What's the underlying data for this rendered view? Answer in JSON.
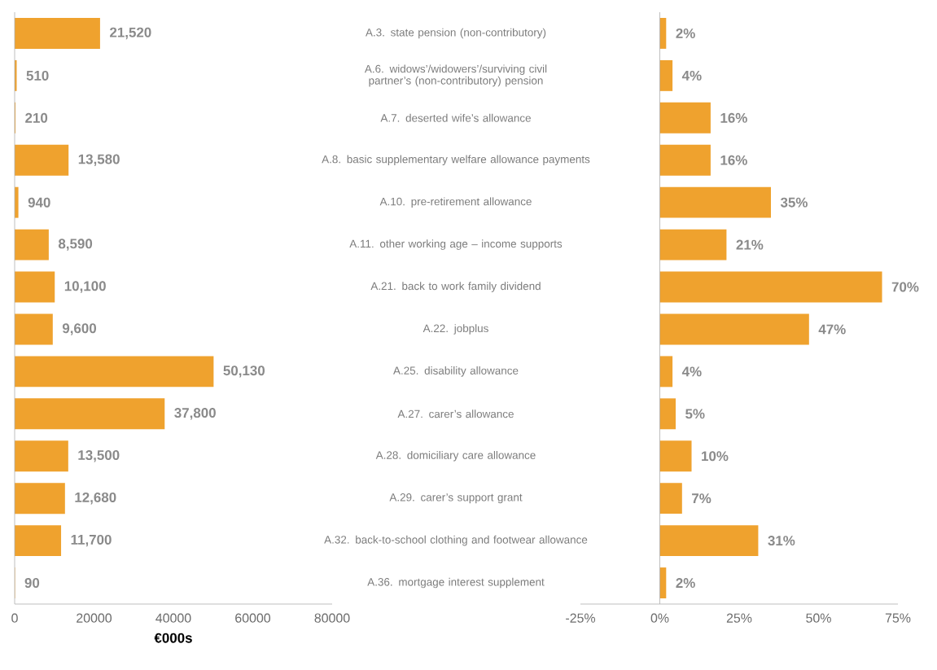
{
  "chart_data": [
    {
      "type": "bar",
      "orientation": "horizontal",
      "color": "#efa22e",
      "xlabel": "€000s",
      "xlim": [
        0,
        80000
      ],
      "xticks": [
        0,
        20000,
        40000,
        60000,
        80000
      ],
      "categories": [
        "A.3. state pension (non-contributory)",
        "A.6. widows’/widowers’/surviving civil partner’s (non-contributory) pension",
        "A.7. deserted wife’s allowance",
        "A.8. basic supplementary welfare allowance payments",
        "A.10. pre-retirement allowance",
        "A.11. other working age – income supports",
        "A.21. back to work family dividend",
        "A.22. jobplus",
        "A.25. disability allowance",
        "A.27. carer’s allowance",
        "A.28. domiciliary care allowance",
        "A.29. carer’s support grant",
        "A.32. back-to-school clothing and footwear allowance",
        "A.36. mortgage interest supplement"
      ],
      "values": [
        21520,
        510,
        210,
        13580,
        940,
        8590,
        10100,
        9600,
        50130,
        37800,
        13500,
        12680,
        11700,
        90
      ],
      "value_labels": [
        "21,520",
        "510",
        "210",
        "13,580",
        "940",
        "8,590",
        "10,100",
        "9,600",
        "50,130",
        "37,800",
        "13,500",
        "12,680",
        "11,700",
        "90"
      ]
    },
    {
      "type": "bar",
      "orientation": "horizontal",
      "color": "#efa22e",
      "xlim": [
        -25,
        75
      ],
      "xticks": [
        {
          "value": -25,
          "label": "-25%"
        },
        {
          "value": 0,
          "label": "0%"
        },
        {
          "value": 25,
          "label": "25%"
        },
        {
          "value": 50,
          "label": "50%"
        },
        {
          "value": 75,
          "label": "75%"
        }
      ],
      "categories": [
        null,
        null,
        null,
        null,
        null,
        null,
        null,
        null,
        null,
        null,
        null,
        null,
        null,
        null
      ],
      "values": [
        2,
        4,
        16,
        16,
        35,
        21,
        70,
        47,
        4,
        5,
        10,
        7,
        31,
        2
      ],
      "value_labels": [
        "2%",
        "4%",
        "16%",
        "16%",
        "35%",
        "21%",
        "70%",
        "47%",
        "4%",
        "5%",
        "10%",
        "7%",
        "31%",
        "2%"
      ]
    }
  ]
}
